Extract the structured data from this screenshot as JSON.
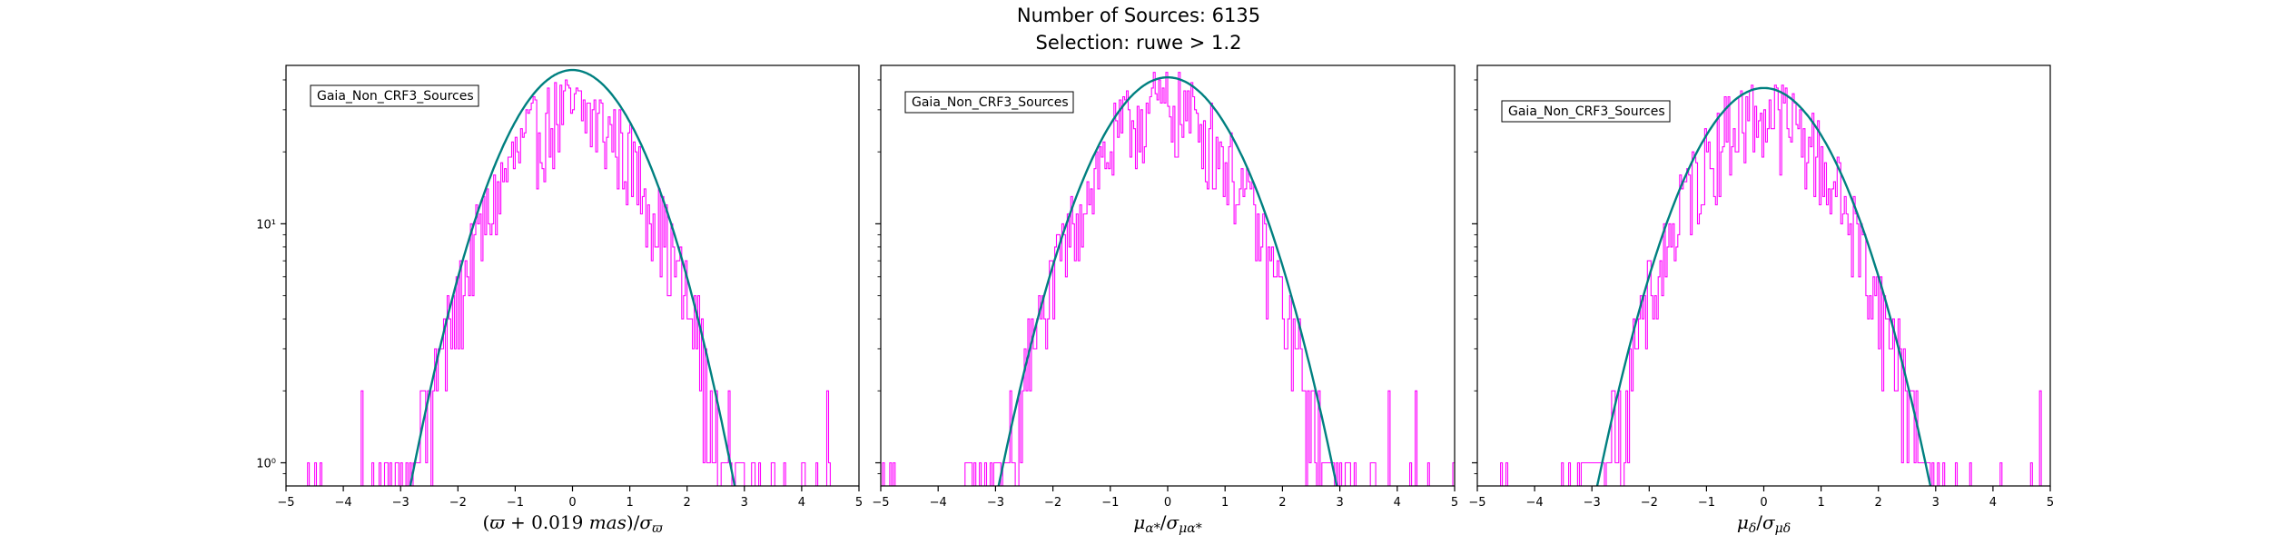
{
  "figure": {
    "title_line1": "Number of Sources: 6135",
    "title_line2": "Selection: ruwe > 1.2"
  },
  "chart_data": [
    {
      "type": "histogram",
      "title": "",
      "xlabel": "(ϖ + 0.019 mas)/σϖ",
      "ylabel": "",
      "xlim": [
        -5,
        5
      ],
      "ylim": [
        0.8,
        46
      ],
      "yscale": "log",
      "xticks": [
        -5,
        -4,
        -3,
        -2,
        -1,
        0,
        1,
        2,
        3,
        4,
        5
      ],
      "yticks": [
        {
          "value": 1,
          "label": "10⁰"
        },
        {
          "value": 10,
          "label": "10¹"
        }
      ],
      "grid": false,
      "legend": {
        "entries": [
          "Gaia_Non_CRF3_Sources"
        ],
        "placement": "top-left"
      },
      "series": [
        {
          "name": "Gaia_Non_CRF3_Sources",
          "kind": "step",
          "color": "#ff00ff",
          "bins": [
            -5,
            5
          ],
          "mu": 0.0,
          "peak": 30,
          "sigma": 1.05
        },
        {
          "kind": "line",
          "color": "#008080",
          "function": "gaussian",
          "mu": 0.0,
          "peak": 44,
          "sigma": 1.0,
          "x_range": [
            -3.12,
            3.12
          ]
        }
      ]
    },
    {
      "type": "histogram",
      "title": "",
      "xlabel": "μα*/σμα*",
      "ylabel": "",
      "xlim": [
        -5,
        5
      ],
      "ylim": [
        0.8,
        46
      ],
      "yscale": "log",
      "xticks": [
        -5,
        -4,
        -3,
        -2,
        -1,
        0,
        1,
        2,
        3,
        4,
        5
      ],
      "yticks": [
        {
          "value": 1,
          "label": ""
        },
        {
          "value": 10,
          "label": ""
        }
      ],
      "grid": false,
      "legend": {
        "entries": [
          "Gaia_Non_CRF3_Sources"
        ],
        "placement": "top-left"
      },
      "series": [
        {
          "name": "Gaia_Non_CRF3_Sources",
          "kind": "step",
          "color": "#ff00ff",
          "bins": [
            -5,
            5
          ],
          "mu": -0.05,
          "peak": 32,
          "sigma": 1.05
        },
        {
          "kind": "line",
          "color": "#008080",
          "function": "gaussian",
          "mu": 0.0,
          "peak": 41,
          "sigma": 1.05,
          "x_range": [
            -3.25,
            3.25
          ]
        }
      ]
    },
    {
      "type": "histogram",
      "title": "",
      "xlabel": "μδ/σμδ",
      "ylabel": "",
      "xlim": [
        -5,
        5
      ],
      "ylim": [
        0.8,
        46
      ],
      "yscale": "log",
      "xticks": [
        -5,
        -4,
        -3,
        -2,
        -1,
        0,
        1,
        2,
        3,
        4,
        5
      ],
      "yticks": [
        {
          "value": 1,
          "label": ""
        },
        {
          "value": 10,
          "label": ""
        }
      ],
      "grid": false,
      "legend": {
        "entries": [
          "Gaia_Non_CRF3_Sources"
        ],
        "placement": "top-left"
      },
      "series": [
        {
          "name": "Gaia_Non_CRF3_Sources",
          "kind": "step",
          "color": "#ff00ff",
          "bins": [
            -5,
            5
          ],
          "mu": 0.0,
          "peak": 30,
          "sigma": 1.05
        },
        {
          "kind": "line",
          "color": "#008080",
          "function": "gaussian",
          "mu": 0.0,
          "peak": 37,
          "sigma": 1.05,
          "x_range": [
            -3.25,
            3.25
          ]
        }
      ]
    }
  ]
}
